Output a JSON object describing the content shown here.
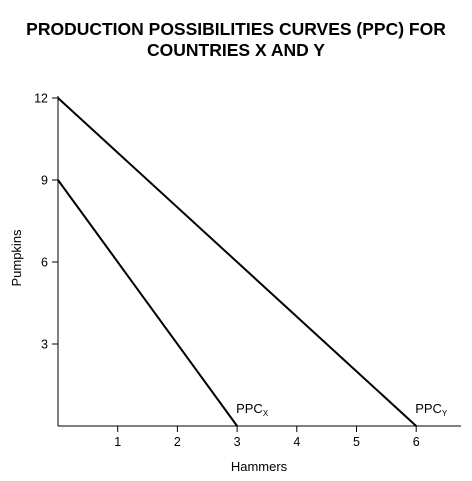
{
  "chart_data": {
    "type": "line",
    "title_lines": [
      "PRODUCTION POSSIBILITIES CURVES (PPC) FOR",
      "COUNTRIES X AND Y"
    ],
    "xlabel": "Hammers",
    "ylabel": "Pumpkins",
    "xlim": [
      0,
      7
    ],
    "ylim": [
      0,
      12
    ],
    "x_ticks": [
      1,
      2,
      3,
      4,
      5,
      6
    ],
    "y_ticks": [
      3,
      6,
      9,
      12
    ],
    "grid": false,
    "legend": "none",
    "series": [
      {
        "label_main": "PPC",
        "label_sub": "X",
        "points": [
          [
            0,
            9
          ],
          [
            3,
            0
          ]
        ]
      },
      {
        "label_main": "PPC",
        "label_sub": "Y",
        "points": [
          [
            0,
            12
          ],
          [
            6,
            0
          ]
        ]
      }
    ],
    "colors": {
      "line": "#000000",
      "background": "#ffffff"
    }
  }
}
